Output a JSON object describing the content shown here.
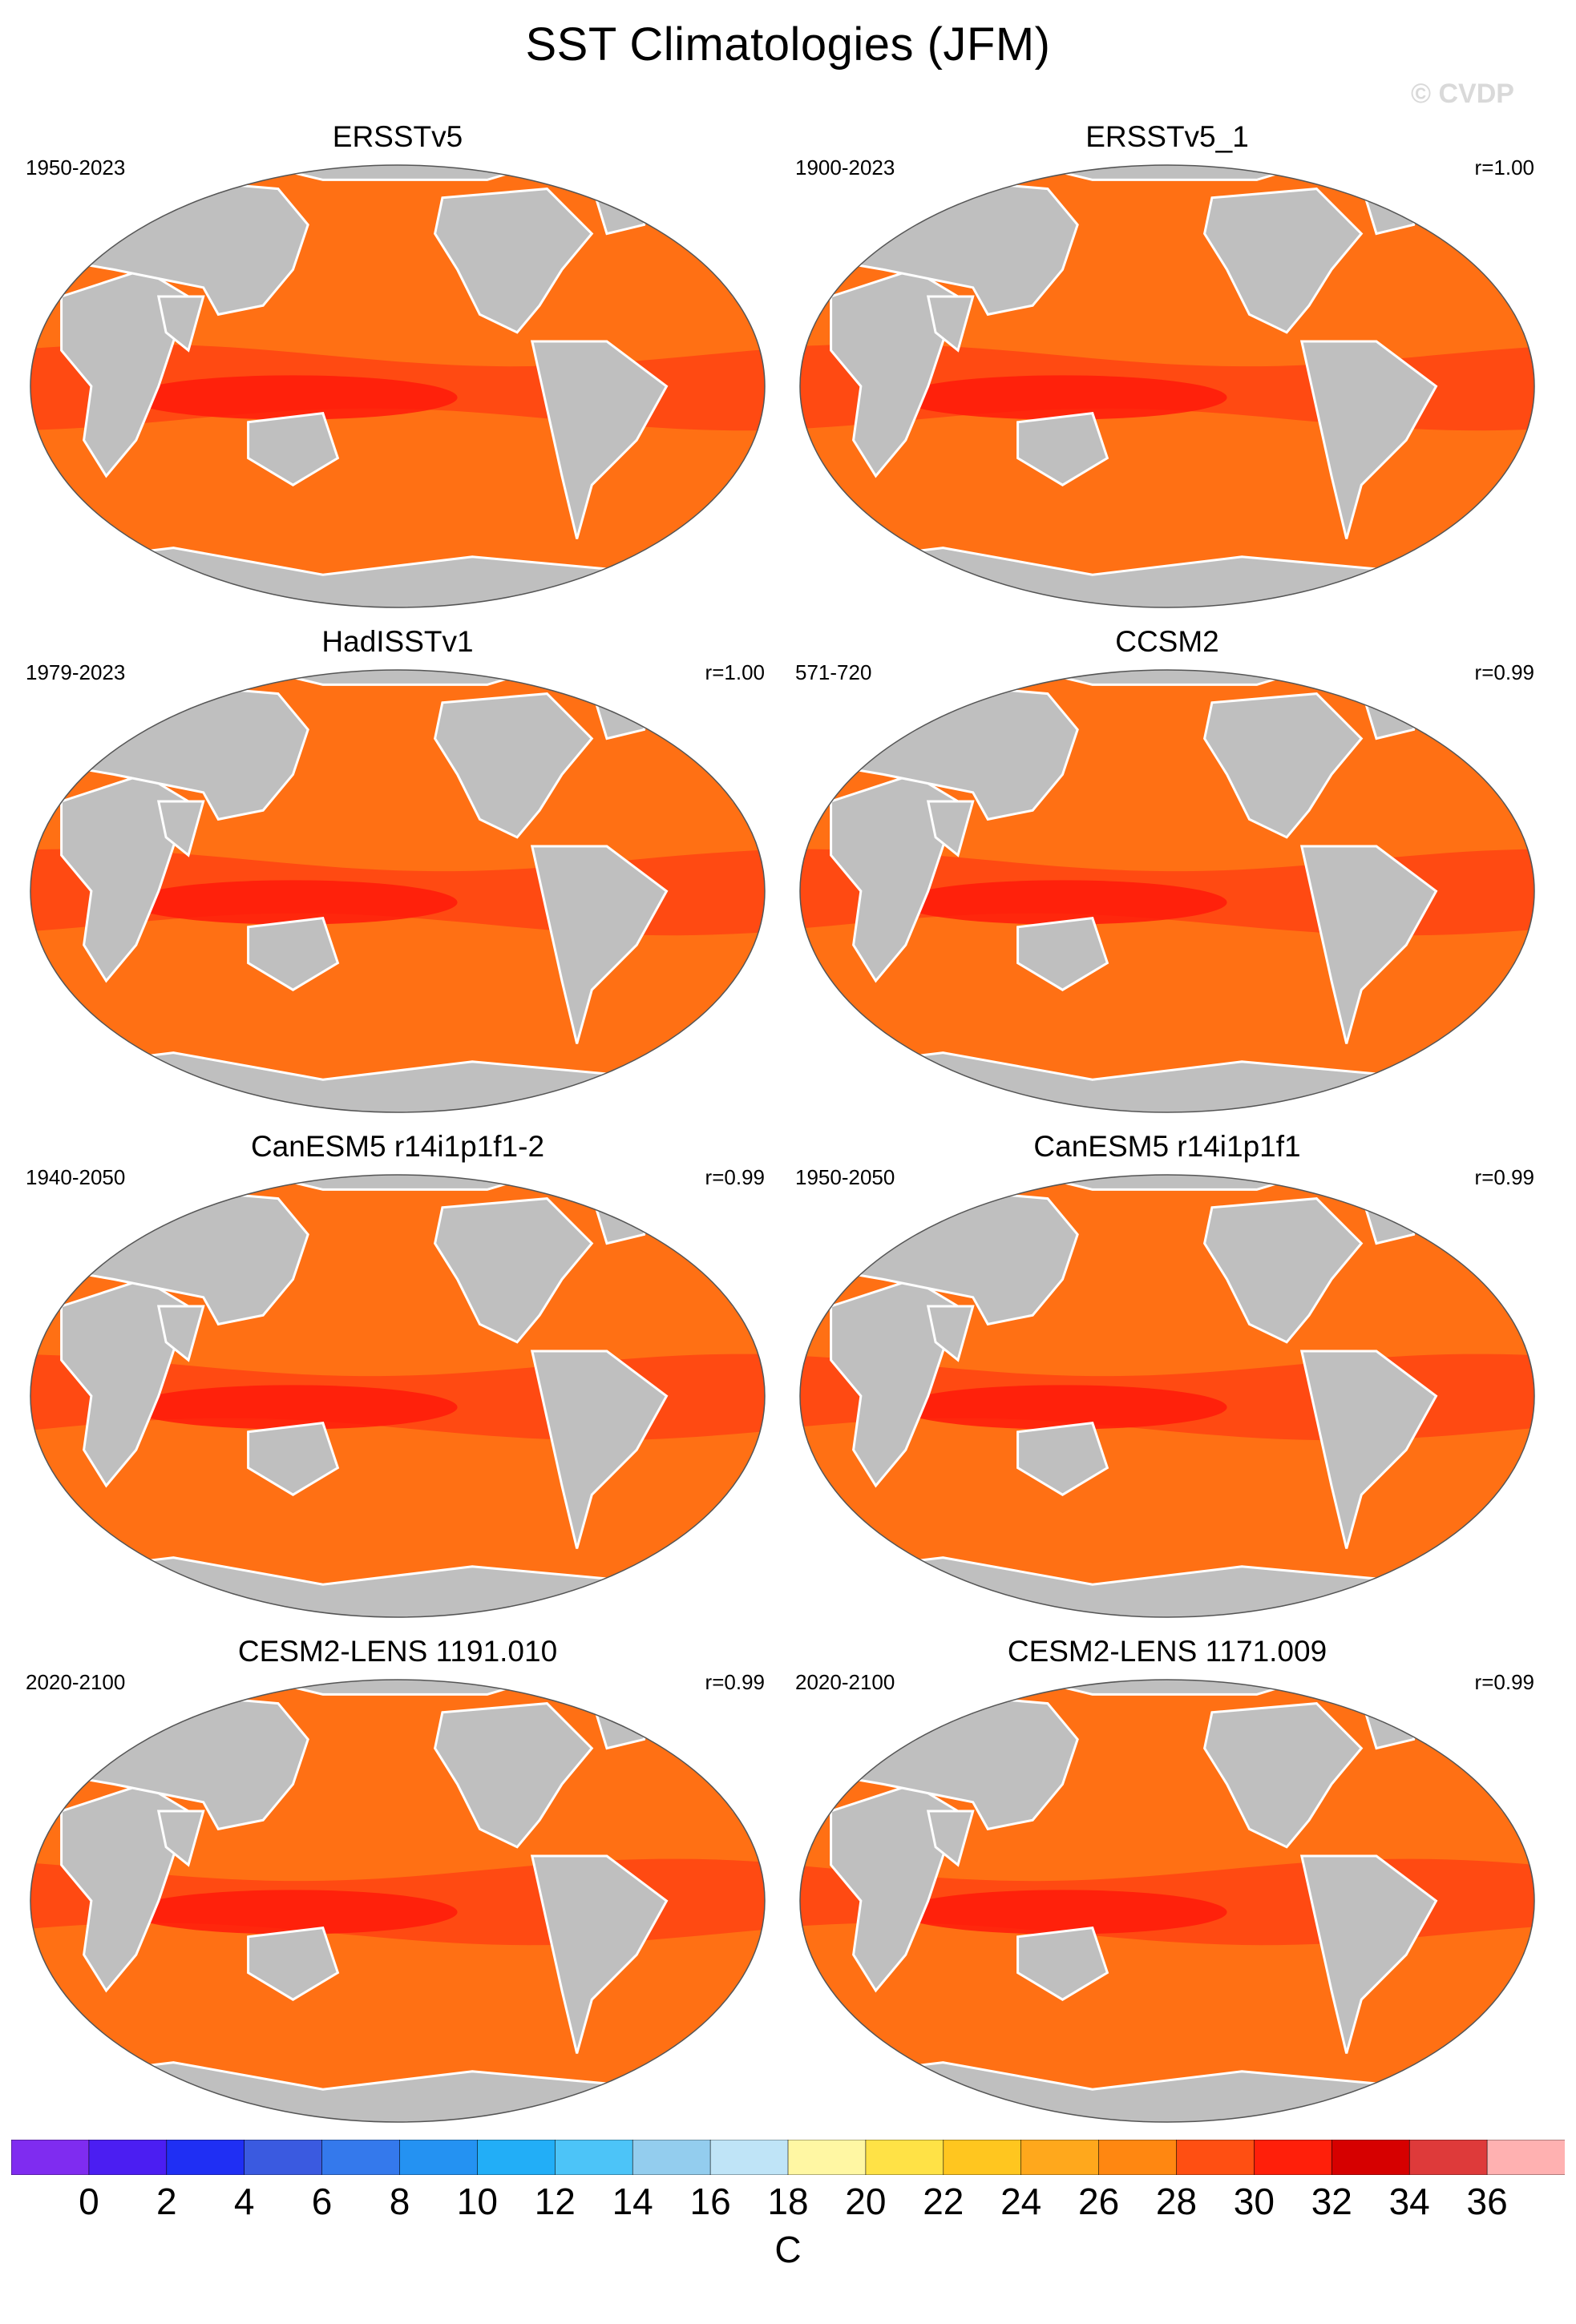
{
  "title": "SST Climatologies (JFM)",
  "watermark": "© CVDP",
  "colors": {
    "land": "#bfbfbf",
    "map_outline": "#555555",
    "levels": [
      "#7f2cf0",
      "#5a1ff0",
      "#2a2cf3",
      "#1b3ef5",
      "#3c66e6",
      "#2f7ff0",
      "#1d95f0",
      "#22aaf6",
      "#43c3f8",
      "#8ccdf0",
      "#bfe3f7",
      "#fff6a6",
      "#ffe44d",
      "#ffcb2a",
      "#ffb020",
      "#ff9215",
      "#ff7014",
      "#ff4a12",
      "#ff1a0a",
      "#d40000",
      "#e23c3c",
      "#ffb3b3"
    ]
  },
  "panels": [
    {
      "title": "ERSSTv5",
      "period": "1950-2023",
      "corr": ""
    },
    {
      "title": "ERSSTv5_1",
      "period": "1900-2023",
      "corr": "r=1.00"
    },
    {
      "title": "HadISSTv1",
      "period": "1979-2023",
      "corr": "r=1.00"
    },
    {
      "title": "CCSM2",
      "period": "571-720",
      "corr": "r=0.99"
    },
    {
      "title": "CanESM5 r14i1p1f1-2",
      "period": "1940-2050",
      "corr": "r=0.99"
    },
    {
      "title": "CanESM5 r14i1p1f1",
      "period": "1950-2050",
      "corr": "r=0.99"
    },
    {
      "title": "CESM2-LENS 1191.010",
      "period": "2020-2100",
      "corr": "r=0.99"
    },
    {
      "title": "CESM2-LENS 1171.009",
      "period": "2020-2100",
      "corr": "r=0.99"
    }
  ],
  "colorbar": {
    "ticks": [
      "0",
      "2",
      "4",
      "6",
      "8",
      "10",
      "12",
      "14",
      "16",
      "18",
      "20",
      "22",
      "24",
      "26",
      "28",
      "30",
      "32",
      "34",
      "36"
    ],
    "unit": "C",
    "colors": [
      "#7f2cf0",
      "#4b1ef2",
      "#1f2ff4",
      "#3a5ae0",
      "#3479ec",
      "#2492f2",
      "#22aef7",
      "#4cc4f8",
      "#93cdee",
      "#bfe4f7",
      "#fff7a3",
      "#ffe246",
      "#ffc61f",
      "#ffa81c",
      "#ff8711",
      "#ff4f12",
      "#ff1f0a",
      "#d60000",
      "#de3a3a",
      "#ffb1b1"
    ]
  }
}
